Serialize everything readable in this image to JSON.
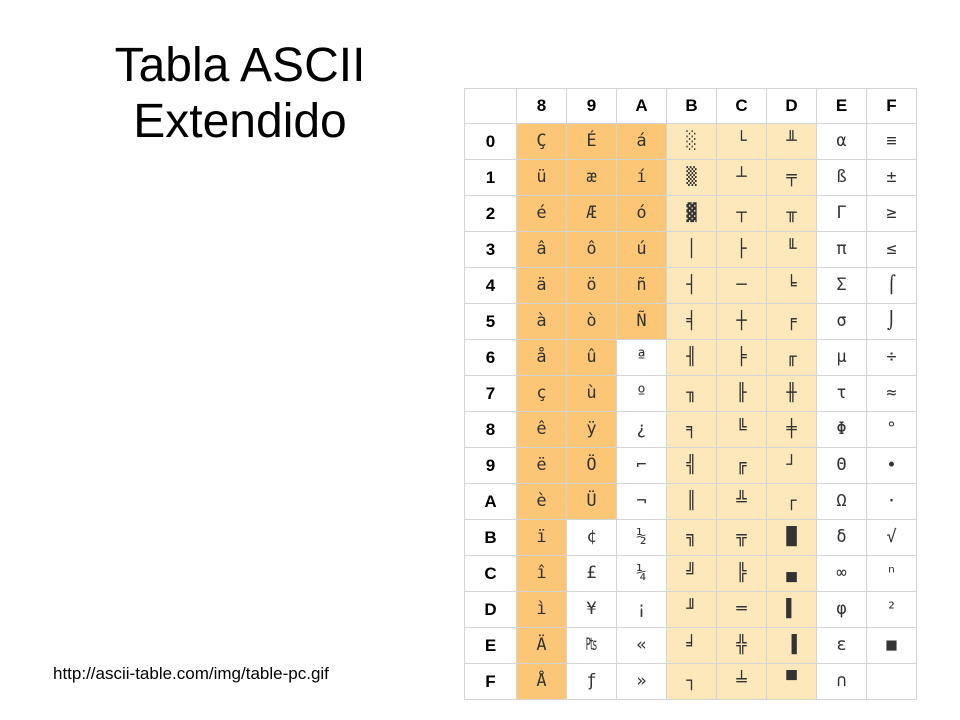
{
  "slide": {
    "title_line1": "Tabla ASCII",
    "title_line2": "Extendido",
    "source_url": "http://ascii-table.com/img/table-pc.gif"
  },
  "table": {
    "col_headers": [
      "8",
      "9",
      "A",
      "B",
      "C",
      "D",
      "E",
      "F"
    ],
    "row_headers": [
      "0",
      "1",
      "2",
      "3",
      "4",
      "5",
      "6",
      "7",
      "8",
      "9",
      "A",
      "B",
      "C",
      "D",
      "E",
      "F"
    ],
    "rows": [
      [
        "Ç",
        "É",
        "á",
        "░",
        "└",
        "╨",
        "α",
        "≡"
      ],
      [
        "ü",
        "æ",
        "í",
        "▒",
        "┴",
        "╤",
        "ß",
        "±"
      ],
      [
        "é",
        "Æ",
        "ó",
        "▓",
        "┬",
        "╥",
        "Γ",
        "≥"
      ],
      [
        "â",
        "ô",
        "ú",
        "│",
        "├",
        "╙",
        "π",
        "≤"
      ],
      [
        "ä",
        "ö",
        "ñ",
        "┤",
        "─",
        "╘",
        "Σ",
        "⌠"
      ],
      [
        "à",
        "ò",
        "Ñ",
        "╡",
        "┼",
        "╒",
        "σ",
        "⌡"
      ],
      [
        "å",
        "û",
        "ª",
        "╢",
        "╞",
        "╓",
        "µ",
        "÷"
      ],
      [
        "ç",
        "ù",
        "º",
        "╖",
        "╟",
        "╫",
        "τ",
        "≈"
      ],
      [
        "ê",
        "ÿ",
        "¿",
        "╕",
        "╚",
        "╪",
        "Φ",
        "°"
      ],
      [
        "ë",
        "Ö",
        "⌐",
        "╣",
        "╔",
        "┘",
        "Θ",
        "∙"
      ],
      [
        "è",
        "Ü",
        "¬",
        "║",
        "╩",
        "┌",
        "Ω",
        "·"
      ],
      [
        "ï",
        "¢",
        "½",
        "╗",
        "╦",
        "█",
        "δ",
        "√"
      ],
      [
        "î",
        "£",
        "¼",
        "╝",
        "╠",
        "▄",
        "∞",
        "ⁿ"
      ],
      [
        "ì",
        "¥",
        "¡",
        "╜",
        "═",
        "▌",
        "φ",
        "²"
      ],
      [
        "Ä",
        "₧",
        "«",
        "╛",
        "╬",
        "▐",
        "ε",
        "■"
      ],
      [
        "Å",
        "ƒ",
        "»",
        "┐",
        "╧",
        "▀",
        "∩",
        " "
      ]
    ],
    "colors": {
      "orange": "#fbc776",
      "light_orange": "#fde8bb",
      "white": "#ffffff",
      "grid": "#d4d4d4"
    }
  }
}
